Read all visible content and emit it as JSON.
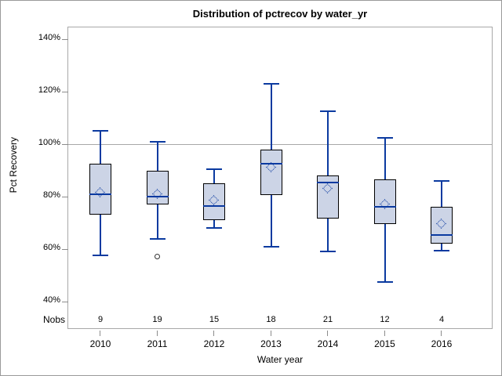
{
  "figure": {
    "title": "Distribution of pctrecov by water_yr",
    "x_axis_label": "Water year",
    "y_axis_label": "Pct Recovery",
    "nobs_row_label": "Nobs"
  },
  "colors": {
    "box_fill": "#ccd4e6",
    "box_border": "#000000",
    "whisker_line": "#0b3aa0",
    "mean_marker": "#0b3aa0",
    "outlier_stroke": "#333333",
    "plot_frame": "#a8a8a8",
    "reference_line": "#a8a8a8",
    "tick_mark": "#8c8c8c",
    "text": "#000000"
  },
  "chart_data": {
    "type": "boxplot",
    "title": "Distribution of pctrecov by water_yr",
    "xlabel": "Water year",
    "ylabel": "Pct Recovery",
    "ylim": [
      40,
      140
    ],
    "y_tick_labels": [
      "140%",
      "120%",
      "100%",
      "80%",
      "60%",
      "40%"
    ],
    "y_tick_values": [
      140,
      120,
      100,
      80,
      60,
      40
    ],
    "reference_line_y": 100,
    "grid": false,
    "nobs_row_label": "Nobs",
    "categories": [
      "2010",
      "2011",
      "2012",
      "2013",
      "2014",
      "2015",
      "2016"
    ],
    "nobs": [
      9,
      19,
      15,
      18,
      21,
      12,
      4
    ],
    "series": [
      {
        "year": "2010",
        "n": 9,
        "whisker_low": 57.5,
        "q1": 73,
        "median": 81,
        "mean": 81.5,
        "q3": 92.5,
        "whisker_high": 105,
        "outliers": []
      },
      {
        "year": "2011",
        "n": 19,
        "whisker_low": 64,
        "q1": 77,
        "median": 80,
        "mean": 81,
        "q3": 90,
        "whisker_high": 101,
        "outliers": [
          57
        ]
      },
      {
        "year": "2012",
        "n": 15,
        "whisker_low": 68,
        "q1": 71,
        "median": 76.5,
        "mean": 78.5,
        "q3": 85,
        "whisker_high": 90.5,
        "outliers": []
      },
      {
        "year": "2013",
        "n": 18,
        "whisker_low": 61,
        "q1": 80.5,
        "median": 92.5,
        "mean": 91,
        "q3": 98,
        "whisker_high": 123,
        "outliers": []
      },
      {
        "year": "2014",
        "n": 21,
        "whisker_low": 59,
        "q1": 71.5,
        "median": 85.5,
        "mean": 83,
        "q3": 88,
        "whisker_high": 112.5,
        "outliers": []
      },
      {
        "year": "2015",
        "n": 12,
        "whisker_low": 47.5,
        "q1": 69.5,
        "median": 76,
        "mean": 77,
        "q3": 86.5,
        "whisker_high": 102.5,
        "outliers": []
      },
      {
        "year": "2016",
        "n": 4,
        "whisker_low": 59.5,
        "q1": 62,
        "median": 65.5,
        "mean": 69.5,
        "q3": 76,
        "whisker_high": 86,
        "outliers": []
      }
    ]
  }
}
